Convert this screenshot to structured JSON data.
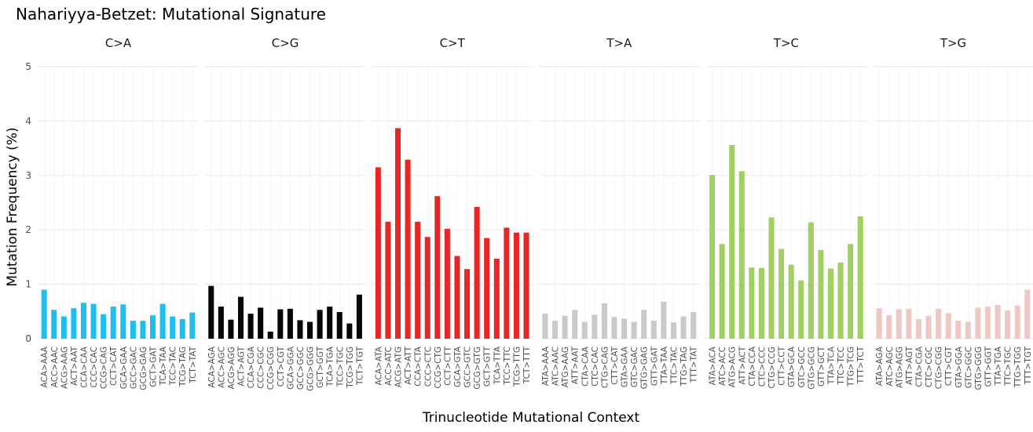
{
  "chart_data": {
    "type": "bar",
    "title": "Nahariyya-Betzet: Mutational Signature",
    "xlabel": "Trinucleotide Mutational Context",
    "ylabel": "Mutation Frequency (%)",
    "ylim": [
      0,
      5
    ],
    "yticks": [
      "0",
      "1",
      "2",
      "3",
      "4",
      "5"
    ],
    "grid": true,
    "legend": "none",
    "facets": [
      {
        "label": "C>A",
        "color": "#1EBFF0",
        "categories": [
          "ACA>AAA",
          "ACC>AAC",
          "ACG>AAG",
          "ACT>AAT",
          "CCA>CAA",
          "CCC>CAC",
          "CCG>CAG",
          "CCT>CAT",
          "GCA>GAA",
          "GCC>GAC",
          "GCG>GAG",
          "GCT>GAT",
          "TCA>TAA",
          "TCC>TAC",
          "TCG>TAG",
          "TCT>TAT"
        ],
        "values": [
          0.9,
          0.53,
          0.41,
          0.56,
          0.66,
          0.64,
          0.45,
          0.59,
          0.63,
          0.33,
          0.33,
          0.43,
          0.64,
          0.41,
          0.36,
          0.48
        ]
      },
      {
        "label": "C>G",
        "color": "#050708",
        "categories": [
          "ACA>AGA",
          "ACC>AGC",
          "ACG>AGG",
          "ACT>AGT",
          "CCA>CGA",
          "CCC>CGC",
          "CCG>CGG",
          "CCT>CGT",
          "GCA>GGA",
          "GCC>GGC",
          "GCG>GGG",
          "GCT>GGT",
          "TCA>TGA",
          "TCC>TGC",
          "TCG>TGG",
          "TCT>TGT"
        ],
        "values": [
          0.97,
          0.59,
          0.35,
          0.77,
          0.46,
          0.57,
          0.13,
          0.54,
          0.55,
          0.34,
          0.31,
          0.53,
          0.59,
          0.49,
          0.28,
          0.81
        ]
      },
      {
        "label": "C>T",
        "color": "#E62725",
        "categories": [
          "ACA>ATA",
          "ACC>ATC",
          "ACG>ATG",
          "ACT>ATT",
          "CCA>CTA",
          "CCC>CTC",
          "CCG>CTG",
          "CCT>CTT",
          "GCA>GTA",
          "GCC>GTC",
          "GCG>GTG",
          "GCT>GTT",
          "TCA>TTA",
          "TCC>TTC",
          "TCG>TTG",
          "TCT>TTT"
        ],
        "values": [
          3.15,
          2.15,
          3.87,
          3.29,
          2.15,
          1.87,
          2.62,
          2.02,
          1.52,
          1.28,
          2.42,
          1.85,
          1.47,
          2.04,
          1.95,
          1.95
        ]
      },
      {
        "label": "T>A",
        "color": "#CBCACB",
        "categories": [
          "ATA>AAA",
          "ATC>AAC",
          "ATG>AAG",
          "ATT>AAT",
          "CTA>CAA",
          "CTC>CAC",
          "CTG>CAG",
          "CTT>CAT",
          "GTA>GAA",
          "GTC>GAC",
          "GTG>GAG",
          "GTT>GAT",
          "TTA>TAA",
          "TTC>TAC",
          "TTG>TAG",
          "TTT>TAT"
        ],
        "values": [
          0.46,
          0.33,
          0.42,
          0.53,
          0.31,
          0.44,
          0.65,
          0.4,
          0.37,
          0.31,
          0.53,
          0.33,
          0.68,
          0.3,
          0.41,
          0.49
        ]
      },
      {
        "label": "T>C",
        "color": "#A1CF64",
        "categories": [
          "ATA>ACA",
          "ATC>ACC",
          "ATG>ACG",
          "ATT>ACT",
          "CTA>CCA",
          "CTC>CCC",
          "CTG>CCG",
          "CTT>CCT",
          "GTA>GCA",
          "GTC>GCC",
          "GTG>GCG",
          "GTT>GCT",
          "TTA>TCA",
          "TTC>TCC",
          "TTG>TCG",
          "TTT>TCT"
        ],
        "values": [
          3.01,
          1.74,
          3.56,
          3.08,
          1.31,
          1.3,
          2.23,
          1.65,
          1.36,
          1.07,
          2.14,
          1.63,
          1.29,
          1.4,
          1.74,
          2.25
        ]
      },
      {
        "label": "T>G",
        "color": "#EDC8C5",
        "categories": [
          "ATA>AGA",
          "ATC>AGC",
          "ATG>AGG",
          "ATT>AGT",
          "CTA>CGA",
          "CTC>CGC",
          "CTG>CGG",
          "CTT>CGT",
          "GTA>GGA",
          "GTC>GGC",
          "GTG>GGG",
          "GTT>GGT",
          "TTA>TGA",
          "TTC>TGC",
          "TTG>TGG",
          "TTT>TGT"
        ],
        "values": [
          0.56,
          0.43,
          0.54,
          0.55,
          0.36,
          0.42,
          0.55,
          0.47,
          0.33,
          0.31,
          0.57,
          0.59,
          0.62,
          0.52,
          0.61,
          0.9
        ]
      }
    ]
  }
}
